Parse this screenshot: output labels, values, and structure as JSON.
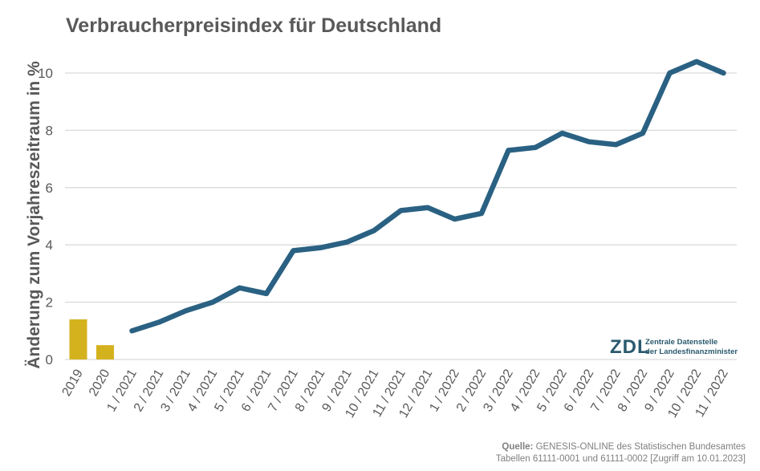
{
  "chart_data": {
    "type": "bar+line",
    "title": "Verbraucherpreisindex für Deutschland",
    "ylabel": "Änderung zum Vorjahreszeitraum in %",
    "ylim": [
      0,
      10.8
    ],
    "yticks": [
      0,
      2,
      4,
      6,
      8,
      10
    ],
    "grid": true,
    "categories": [
      "2019",
      "2020",
      "1 / 2021",
      "2 / 2021",
      "3 / 2021",
      "4 / 2021",
      "5 / 2021",
      "6 / 2021",
      "7 / 2021",
      "8 / 2021",
      "9 / 2021",
      "10 / 2021",
      "11 / 2021",
      "12 / 2021",
      "1 / 2022",
      "2 / 2022",
      "3 / 2022",
      "4 / 2022",
      "5 / 2022",
      "6 / 2022",
      "7 / 2022",
      "8 / 2022",
      "9 / 2022",
      "10 / 2022",
      "11 / 2022"
    ],
    "bars": {
      "categories": [
        "2019",
        "2020"
      ],
      "values": [
        1.4,
        0.5
      ],
      "color": "#d4b21e"
    },
    "line": {
      "categories": [
        "1 / 2021",
        "2 / 2021",
        "3 / 2021",
        "4 / 2021",
        "5 / 2021",
        "6 / 2021",
        "7 / 2021",
        "8 / 2021",
        "9 / 2021",
        "10 / 2021",
        "11 / 2021",
        "12 / 2021",
        "1 / 2022",
        "2 / 2022",
        "3 / 2022",
        "4 / 2022",
        "5 / 2022",
        "6 / 2022",
        "7 / 2022",
        "8 / 2022",
        "9 / 2022",
        "10 / 2022",
        "11 / 2022"
      ],
      "values": [
        1.0,
        1.3,
        1.7,
        2.0,
        2.5,
        2.3,
        3.8,
        3.9,
        4.1,
        4.5,
        5.2,
        5.3,
        4.9,
        5.1,
        7.3,
        7.4,
        7.9,
        7.6,
        7.5,
        7.9,
        10.0,
        10.4,
        10.0
      ],
      "color": "#2a6183"
    }
  },
  "logo": {
    "mark": "ZDL",
    "line1": "Zentrale Datenstelle",
    "line2": "der Landesfinanzminister"
  },
  "source": {
    "label": "Quelle:",
    "line1_rest": " GENESIS-ONLINE des Statistischen Bundesamtes",
    "line2": "Tabellen 61111-0001 und 61111-0002 [Zugriff am 10.01.2023]"
  },
  "colors": {
    "bar": "#d4b21e",
    "line": "#2a6183",
    "text": "#595959",
    "grid": "#d9d9d9"
  }
}
